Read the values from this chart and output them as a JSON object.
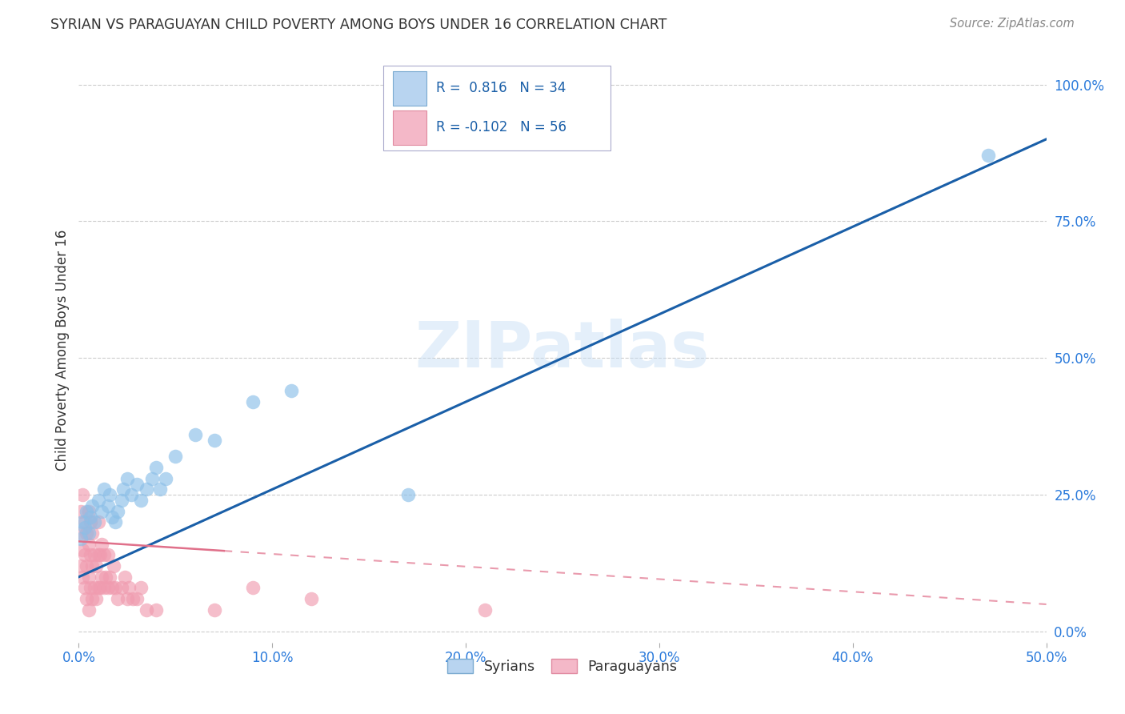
{
  "title": "SYRIAN VS PARAGUAYAN CHILD POVERTY AMONG BOYS UNDER 16 CORRELATION CHART",
  "source": "Source: ZipAtlas.com",
  "ylabel_label": "Child Poverty Among Boys Under 16",
  "xlim": [
    0.0,
    0.5
  ],
  "ylim": [
    -0.02,
    1.05
  ],
  "xticks": [
    0.0,
    0.1,
    0.2,
    0.3,
    0.4,
    0.5
  ],
  "xtick_labels": [
    "0.0%",
    "10.0%",
    "20.0%",
    "30.0%",
    "40.0%",
    "50.0%"
  ],
  "yticks": [
    0.0,
    0.25,
    0.5,
    0.75,
    1.0
  ],
  "ytick_labels": [
    "0.0%",
    "25.0%",
    "50.0%",
    "75.0%",
    "100.0%"
  ],
  "syrian_R": 0.816,
  "syrian_N": 34,
  "paraguayan_R": -0.102,
  "paraguayan_N": 56,
  "syrians_x": [
    0.001,
    0.002,
    0.003,
    0.004,
    0.005,
    0.006,
    0.007,
    0.008,
    0.01,
    0.012,
    0.013,
    0.015,
    0.016,
    0.017,
    0.019,
    0.02,
    0.022,
    0.023,
    0.025,
    0.027,
    0.03,
    0.032,
    0.035,
    0.038,
    0.04,
    0.042,
    0.045,
    0.05,
    0.06,
    0.07,
    0.09,
    0.11,
    0.17,
    0.47
  ],
  "syrians_y": [
    0.17,
    0.2,
    0.19,
    0.22,
    0.18,
    0.21,
    0.23,
    0.2,
    0.24,
    0.22,
    0.26,
    0.23,
    0.25,
    0.21,
    0.2,
    0.22,
    0.24,
    0.26,
    0.28,
    0.25,
    0.27,
    0.24,
    0.26,
    0.28,
    0.3,
    0.26,
    0.28,
    0.32,
    0.36,
    0.35,
    0.42,
    0.44,
    0.25,
    0.87
  ],
  "paraguayans_x": [
    0.001,
    0.001,
    0.001,
    0.002,
    0.002,
    0.002,
    0.003,
    0.003,
    0.003,
    0.004,
    0.004,
    0.004,
    0.005,
    0.005,
    0.005,
    0.005,
    0.006,
    0.006,
    0.006,
    0.007,
    0.007,
    0.007,
    0.008,
    0.008,
    0.009,
    0.009,
    0.01,
    0.01,
    0.01,
    0.011,
    0.011,
    0.012,
    0.012,
    0.013,
    0.013,
    0.014,
    0.015,
    0.015,
    0.016,
    0.017,
    0.018,
    0.019,
    0.02,
    0.022,
    0.024,
    0.025,
    0.026,
    0.028,
    0.03,
    0.032,
    0.035,
    0.04,
    0.07,
    0.09,
    0.12,
    0.21
  ],
  "paraguayans_y": [
    0.12,
    0.18,
    0.22,
    0.1,
    0.15,
    0.25,
    0.08,
    0.14,
    0.2,
    0.06,
    0.12,
    0.18,
    0.04,
    0.1,
    0.16,
    0.22,
    0.08,
    0.14,
    0.2,
    0.06,
    0.12,
    0.18,
    0.08,
    0.14,
    0.06,
    0.12,
    0.08,
    0.14,
    0.2,
    0.08,
    0.14,
    0.1,
    0.16,
    0.08,
    0.14,
    0.1,
    0.08,
    0.14,
    0.1,
    0.08,
    0.12,
    0.08,
    0.06,
    0.08,
    0.1,
    0.06,
    0.08,
    0.06,
    0.06,
    0.08,
    0.04,
    0.04,
    0.04,
    0.08,
    0.06,
    0.04
  ],
  "syrian_color": "#8bbfe8",
  "paraguayan_color": "#f09baf",
  "syrian_line_color": "#1a5fa8",
  "paraguayan_line_color": "#e0708a",
  "watermark": "ZIPatlas",
  "background_color": "#ffffff",
  "grid_color": "#cccccc",
  "title_color": "#333333",
  "axis_label_color": "#333333",
  "tick_label_color": "#2a7adb",
  "legend_text_color": "#1a5fa8",
  "legend_box_color": "#aaccee",
  "legend_patch_syrian": "#b8d4f0",
  "legend_patch_paraguayan": "#f4b8c8"
}
